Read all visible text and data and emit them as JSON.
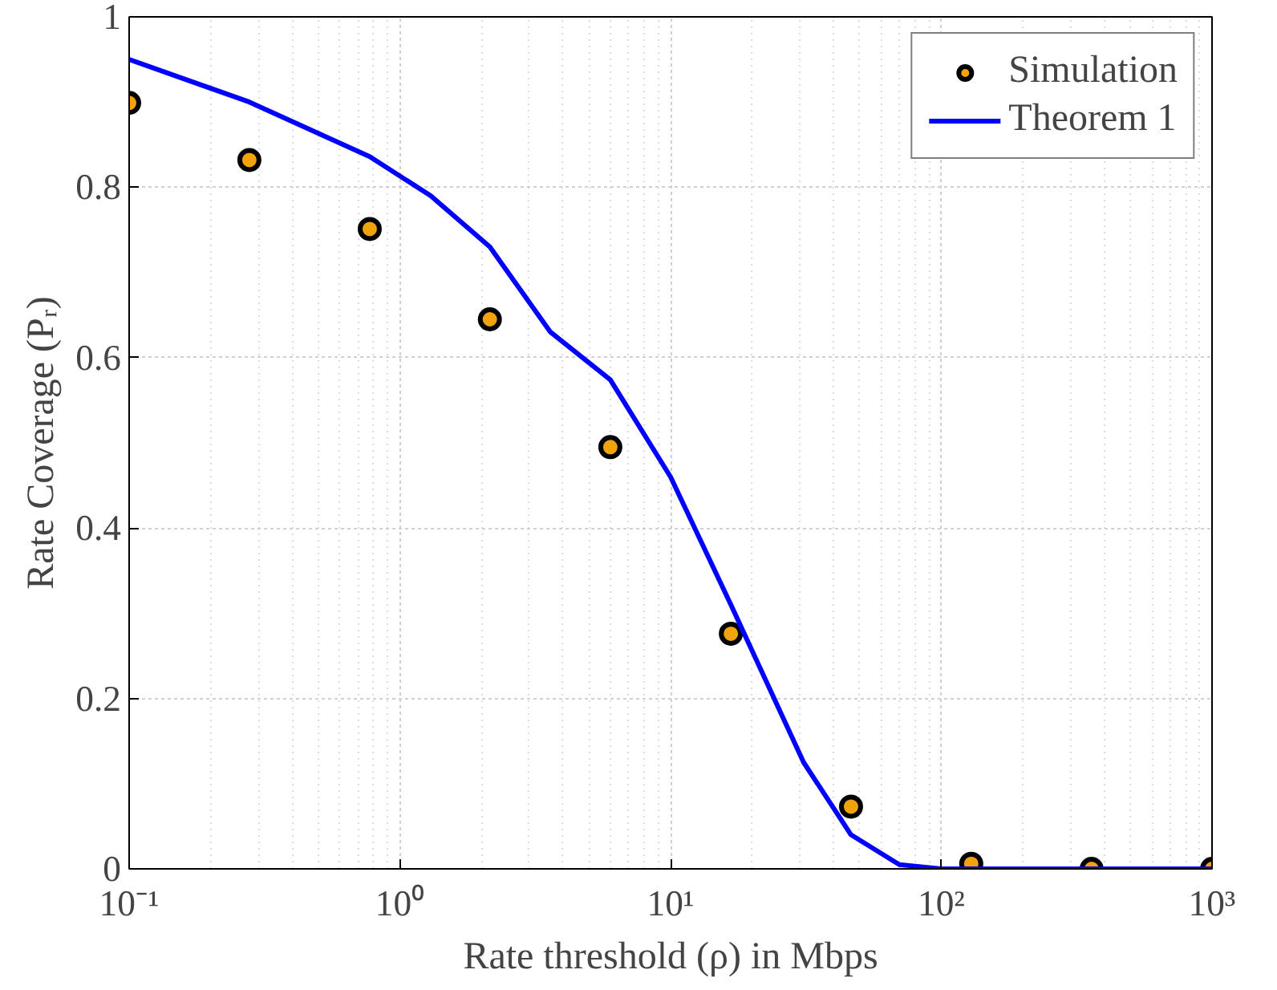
{
  "chart_data": {
    "type": "scatter",
    "xlabel": "Rate threshold (ρ) in Mbps",
    "ylabel": "Rate Coverage (Pᵣ)",
    "log": "x",
    "xlim": [
      0.1,
      1000
    ],
    "ylim": [
      0,
      1
    ],
    "xticks": [
      {
        "value": 0.1,
        "label": "10⁻¹"
      },
      {
        "value": 1,
        "label": "10⁰"
      },
      {
        "value": 10,
        "label": "10¹"
      },
      {
        "value": 100,
        "label": "10²"
      },
      {
        "value": 1000,
        "label": "10³"
      }
    ],
    "yticks": [
      0,
      0.2,
      0.4,
      0.6,
      0.8,
      1
    ],
    "grid": true,
    "legend": "top right",
    "series": [
      {
        "name": "Simulation",
        "marker": "circle",
        "color": "#f0a30a",
        "x": [
          0.1,
          0.278,
          0.774,
          2.15,
          5.99,
          16.7,
          46.4,
          129,
          359,
          1000
        ],
        "values": [
          0.899,
          0.832,
          0.751,
          0.645,
          0.495,
          0.276,
          0.073,
          0.006,
          0,
          0
        ]
      },
      {
        "name": "Theorem 1",
        "type": "line",
        "line_style": "solid",
        "color": "#0000ff",
        "x": [
          0.1,
          0.278,
          0.774,
          1.3,
          2.15,
          3.6,
          5.99,
          10,
          16.7,
          31,
          46.4,
          70,
          100,
          129,
          359,
          1000
        ],
        "values": [
          0.95,
          0.9,
          0.836,
          0.79,
          0.73,
          0.63,
          0.574,
          0.46,
          0.31,
          0.125,
          0.04,
          0.005,
          0,
          0,
          0,
          0
        ]
      }
    ]
  }
}
